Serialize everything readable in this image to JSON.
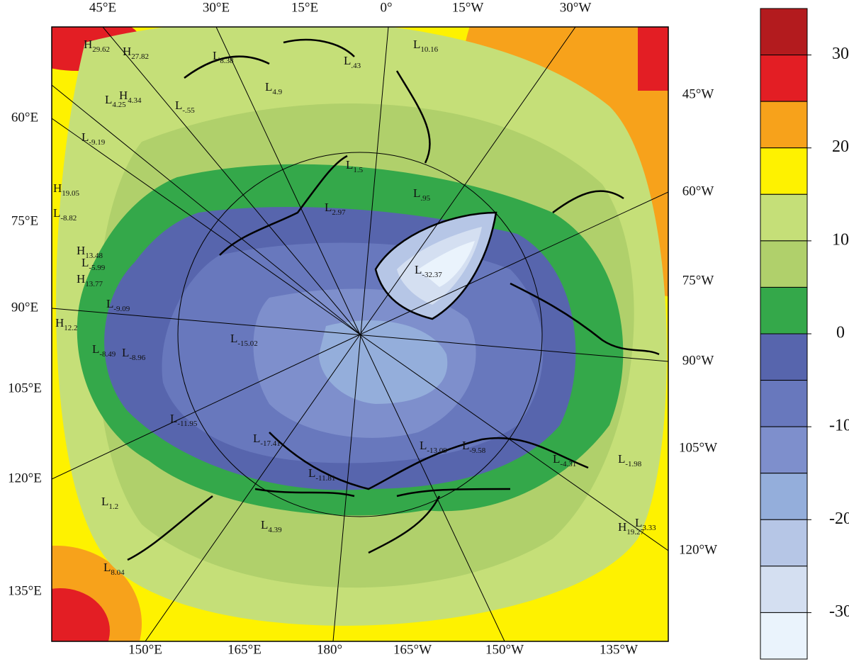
{
  "map": {
    "top_labels": [
      "45°E",
      "30°E",
      "15°E",
      "0°",
      "15°W",
      "30°W"
    ],
    "left_labels": [
      "60°E",
      "75°E",
      "90°E",
      "105°E",
      "120°E",
      "135°E"
    ],
    "right_labels": [
      "45°W",
      "60°W",
      "75°W",
      "90°W",
      "105°W",
      "120°W"
    ],
    "bottom_labels": [
      "150°E",
      "165°E",
      "180°",
      "165°W",
      "150°W",
      "135°W"
    ],
    "centers": [
      {
        "letter": "H",
        "value": "29.62"
      },
      {
        "letter": "H",
        "value": "27.82"
      },
      {
        "letter": "L",
        "value": "8.38"
      },
      {
        "letter": "L",
        "value": ".43"
      },
      {
        "letter": "L",
        "value": "10.16"
      },
      {
        "letter": "L",
        "value": "4.9"
      },
      {
        "letter": "L",
        "value": "4.25"
      },
      {
        "letter": "H",
        "value": "4.34"
      },
      {
        "letter": "L",
        "value": "-.55"
      },
      {
        "letter": "L",
        "value": "-9.19"
      },
      {
        "letter": "L",
        "value": "1.5"
      },
      {
        "letter": "L",
        "value": ".95"
      },
      {
        "letter": "H",
        "value": "19.05"
      },
      {
        "letter": "L",
        "value": "-8.82"
      },
      {
        "letter": "L",
        "value": "2.97"
      },
      {
        "letter": "H",
        "value": "13.48"
      },
      {
        "letter": "L",
        "value": "-5.99"
      },
      {
        "letter": "H",
        "value": "13.77"
      },
      {
        "letter": "L",
        "value": "-32.37"
      },
      {
        "letter": "L",
        "value": "-9.09"
      },
      {
        "letter": "H",
        "value": "12.2"
      },
      {
        "letter": "L",
        "value": "-15.02"
      },
      {
        "letter": "L",
        "value": "-8.49"
      },
      {
        "letter": "L",
        "value": "-8.96"
      },
      {
        "letter": "L",
        "value": "-11.95"
      },
      {
        "letter": "L",
        "value": "-17.41"
      },
      {
        "letter": "L",
        "value": "-13.09"
      },
      {
        "letter": "L",
        "value": "-9.58"
      },
      {
        "letter": "L",
        "value": "-4.31"
      },
      {
        "letter": "L",
        "value": "-1.98"
      },
      {
        "letter": "L",
        "value": "-11.81"
      },
      {
        "letter": "L",
        "value": "1.2"
      },
      {
        "letter": "L",
        "value": "4.39"
      },
      {
        "letter": "H",
        "value": "19.27"
      },
      {
        "letter": "L",
        "value": "3.33"
      },
      {
        "letter": "L",
        "value": "8.04"
      }
    ]
  },
  "colorbar": {
    "lim": [
      -35,
      35
    ],
    "ticks": [
      30,
      20,
      10,
      0,
      -10,
      -20,
      -30
    ],
    "colors": [
      "#b31b1e",
      "#e31e24",
      "#f7a21b",
      "#fef200",
      "#c5df78",
      "#b0d06b",
      "#34a84a",
      "#5765ad",
      "#6878bd",
      "#7e8fcc",
      "#94aedb",
      "#b6c6e6",
      "#d4dff1",
      "#eaf3fc"
    ]
  }
}
